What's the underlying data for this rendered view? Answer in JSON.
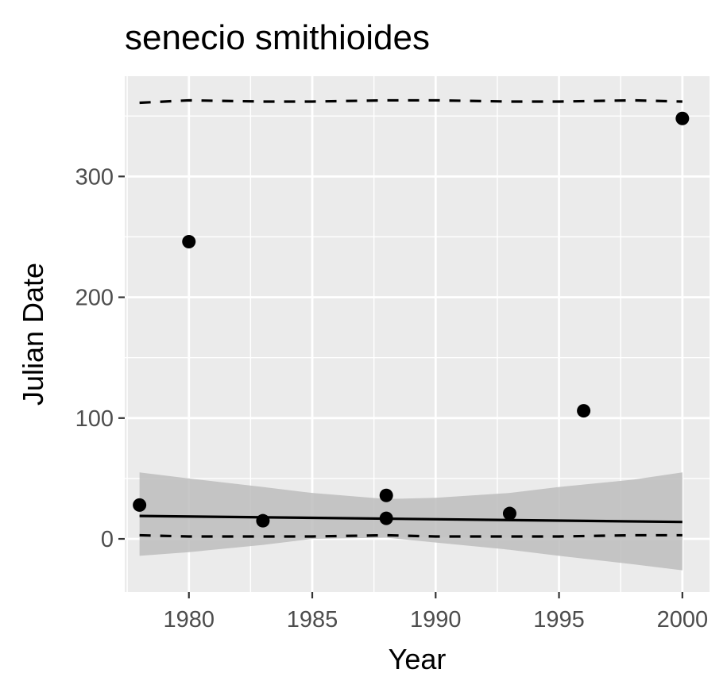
{
  "chart_data": {
    "type": "scatter",
    "title": "senecio smithioides",
    "xlabel": "Year",
    "ylabel": "Julian Date",
    "xlim": [
      1977.4,
      2001.1
    ],
    "ylim": [
      -44,
      383
    ],
    "xticks": [
      1980,
      1985,
      1990,
      1995,
      2000
    ],
    "xticks_minor": [
      1977.5,
      1982.5,
      1987.5,
      1992.5,
      1997.5
    ],
    "yticks": [
      0,
      100,
      200,
      300
    ],
    "yticks_minor": [
      50,
      150,
      250,
      350
    ],
    "grid": true,
    "background": "#ebebeb",
    "points": {
      "x": [
        1978,
        1980,
        1983,
        1988,
        1988,
        1993,
        1996,
        2000
      ],
      "y": [
        28,
        246,
        15,
        36,
        17,
        21,
        106,
        348
      ]
    },
    "series": [
      {
        "name": "fit",
        "style": "solid",
        "x": [
          1978,
          2000
        ],
        "y": [
          19,
          14
        ]
      },
      {
        "name": "confidence band",
        "style": "ribbon",
        "color": "#bdbdbd",
        "x": [
          1978,
          1980,
          1983,
          1985,
          1988,
          1990,
          1993,
          1995,
          1998,
          2000
        ],
        "upper": [
          55,
          50,
          43,
          38,
          33,
          34,
          38,
          43,
          49,
          55
        ],
        "lower": [
          -14,
          -11,
          -5,
          0,
          1,
          -3,
          -9,
          -14,
          -21,
          -26
        ]
      },
      {
        "name": "upper quantile",
        "style": "dashed",
        "x": [
          1978,
          1980,
          1983,
          1985,
          1988,
          1990,
          1993,
          1995,
          1998,
          2000
        ],
        "y": [
          361,
          363,
          362,
          362,
          363,
          363,
          362,
          362,
          363,
          362
        ]
      },
      {
        "name": "lower quantile",
        "style": "dashed",
        "x": [
          1978,
          1980,
          1983,
          1985,
          1988,
          1990,
          1993,
          1995,
          1998,
          2000
        ],
        "y": [
          3,
          2,
          2,
          2,
          3,
          2,
          2,
          2,
          3,
          3
        ]
      }
    ]
  }
}
